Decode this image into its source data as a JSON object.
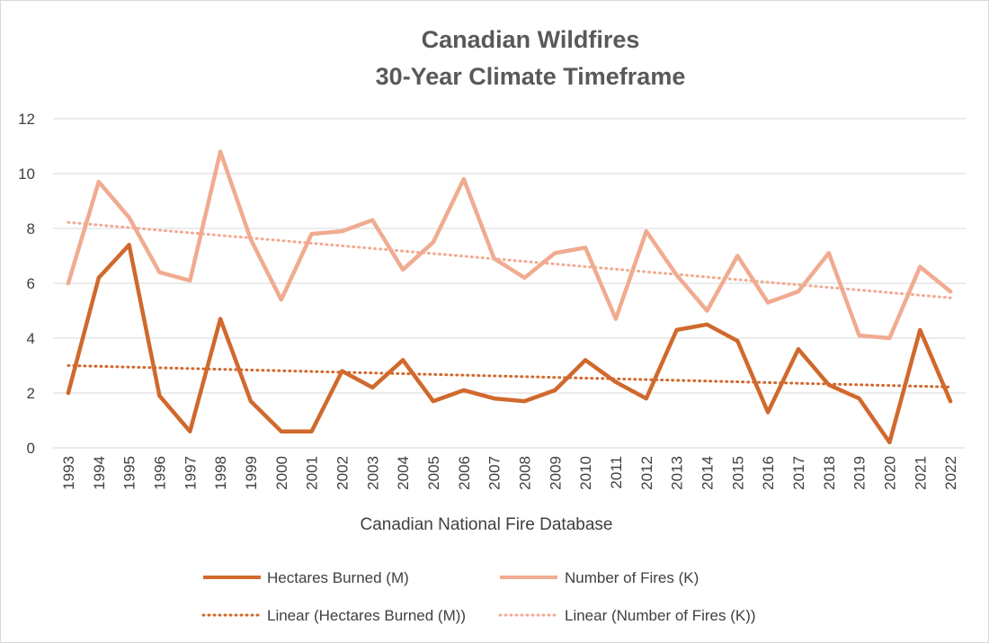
{
  "chart_data": {
    "type": "line",
    "title_lines": [
      "Canadian Wildfires",
      "30-Year Climate Timeframe"
    ],
    "xlabel": "Canadian National Fire Database",
    "ylabel": "",
    "ylim": [
      0,
      12
    ],
    "yticks": [
      "0",
      "2",
      "4",
      "6",
      "8",
      "10",
      "12"
    ],
    "grid": true,
    "legend_position": "bottom",
    "categories": [
      "1993",
      "1994",
      "1995",
      "1996",
      "1997",
      "1998",
      "1999",
      "2000",
      "2001",
      "2002",
      "2003",
      "2004",
      "2005",
      "2006",
      "2007",
      "2008",
      "2009",
      "2010",
      "2011",
      "2012",
      "2013",
      "2014",
      "2015",
      "2016",
      "2017",
      "2018",
      "2019",
      "2020",
      "2021",
      "2022"
    ],
    "series": [
      {
        "name": "Hectares Burned (M)",
        "color": "#d0692d",
        "values": [
          2.0,
          6.2,
          7.4,
          1.9,
          0.6,
          4.7,
          1.7,
          0.6,
          0.6,
          2.8,
          2.2,
          3.2,
          1.7,
          2.1,
          1.8,
          1.7,
          2.1,
          3.2,
          2.4,
          1.8,
          4.3,
          4.5,
          3.9,
          1.3,
          3.6,
          2.3,
          1.8,
          0.2,
          4.3,
          1.7
        ]
      },
      {
        "name": "Number of Fires (K)",
        "color": "#f0ab90",
        "values": [
          6.0,
          9.7,
          8.4,
          6.4,
          6.1,
          10.8,
          7.6,
          5.4,
          7.8,
          7.9,
          8.3,
          6.5,
          7.5,
          9.8,
          6.9,
          6.2,
          7.1,
          7.3,
          4.7,
          7.9,
          6.3,
          5.0,
          7.0,
          5.3,
          5.7,
          7.1,
          4.1,
          4.0,
          6.6,
          5.7
        ]
      }
    ],
    "trendlines": [
      {
        "name": "Linear (Hectares Burned (M))",
        "color": "#d0692d",
        "start": 3.0,
        "end": 2.22
      },
      {
        "name": "Linear (Number of Fires (K))",
        "color": "#f0ab90",
        "start": 8.22,
        "end": 5.47
      }
    ]
  }
}
